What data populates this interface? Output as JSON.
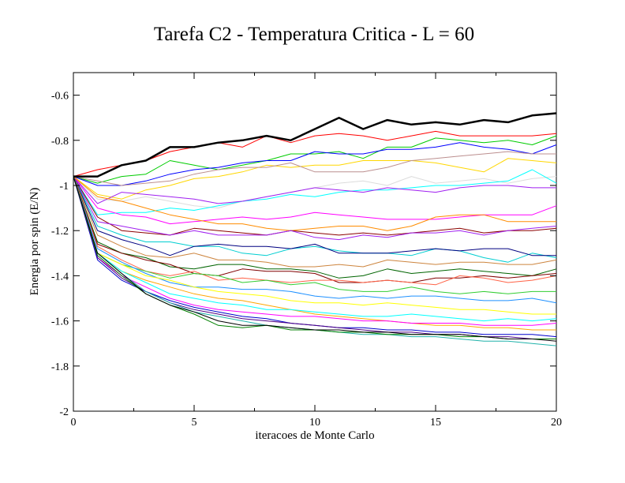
{
  "chart_data": {
    "type": "line",
    "title": "Tarefa C2 - Temperatura Critica - L = 60",
    "xlabel": "iteracoes de Monte Carlo",
    "ylabel": "Energia por spin (E/N)",
    "xlim": [
      0,
      20
    ],
    "ylim": [
      -2,
      -0.5
    ],
    "xticks": [
      0,
      5,
      10,
      15,
      20
    ],
    "yticks": [
      -2,
      -1.8,
      -1.6,
      -1.4,
      -1.2,
      -1,
      -0.8,
      -0.6
    ],
    "xtick_labels": [
      "0",
      "5",
      "10",
      "15",
      "20"
    ],
    "ytick_labels": [
      "-2",
      "-1.8",
      "-1.6",
      "-1.4",
      "-1.2",
      "-1",
      "-0.8",
      "-0.6"
    ],
    "grid": false,
    "legend": "none",
    "x": [
      0,
      1,
      2,
      3,
      4,
      5,
      6,
      7,
      8,
      9,
      10,
      11,
      12,
      13,
      14,
      15,
      16,
      17,
      18,
      19,
      20
    ],
    "series": [
      {
        "color": "#000000",
        "width": 2.5,
        "values": [
          -0.96,
          -0.96,
          -0.91,
          -0.89,
          -0.83,
          -0.83,
          -0.81,
          -0.8,
          -0.78,
          -0.8,
          -0.75,
          -0.7,
          -0.75,
          -0.71,
          -0.73,
          -0.72,
          -0.73,
          -0.71,
          -0.72,
          -0.69,
          -0.68
        ]
      },
      {
        "color": "#ff0000",
        "width": 1,
        "values": [
          -0.96,
          -0.93,
          -0.91,
          -0.89,
          -0.85,
          -0.83,
          -0.81,
          -0.83,
          -0.78,
          -0.81,
          -0.78,
          -0.77,
          -0.78,
          -0.8,
          -0.78,
          -0.76,
          -0.78,
          -0.78,
          -0.78,
          -0.78,
          -0.77
        ]
      },
      {
        "color": "#00cc00",
        "width": 1,
        "values": [
          -0.96,
          -0.99,
          -0.96,
          -0.95,
          -0.89,
          -0.91,
          -0.93,
          -0.91,
          -0.89,
          -0.86,
          -0.86,
          -0.85,
          -0.88,
          -0.83,
          -0.83,
          -0.79,
          -0.8,
          -0.81,
          -0.8,
          -0.82,
          -0.78
        ]
      },
      {
        "color": "#0000ff",
        "width": 1,
        "values": [
          -0.96,
          -1.0,
          -1.0,
          -0.98,
          -0.95,
          -0.93,
          -0.92,
          -0.9,
          -0.89,
          -0.89,
          -0.85,
          -0.86,
          -0.86,
          -0.84,
          -0.84,
          -0.83,
          -0.81,
          -0.83,
          -0.84,
          -0.86,
          -0.82
        ]
      },
      {
        "color": "#ffd700",
        "width": 1,
        "values": [
          -0.96,
          -1.04,
          -1.06,
          -1.02,
          -1.0,
          -0.97,
          -0.96,
          -0.94,
          -0.91,
          -0.92,
          -0.91,
          -0.91,
          -0.89,
          -0.89,
          -0.89,
          -0.9,
          -0.92,
          -0.94,
          -0.88,
          -0.89,
          -0.9
        ]
      },
      {
        "color": "#bc8f8f",
        "width": 1,
        "values": [
          -0.96,
          -0.98,
          -1.0,
          -0.99,
          -0.98,
          -0.95,
          -0.93,
          -0.92,
          -0.92,
          -0.9,
          -0.94,
          -0.94,
          -0.94,
          -0.92,
          -0.89,
          -0.88,
          -0.87,
          -0.86,
          -0.85,
          -0.86,
          -0.86
        ]
      },
      {
        "color": "#dcdcdc",
        "width": 1,
        "values": [
          -0.96,
          -1.06,
          -1.07,
          -1.05,
          -1.07,
          -1.09,
          -1.1,
          -1.07,
          -1.05,
          -1.03,
          -1.01,
          -0.99,
          -0.98,
          -1.0,
          -0.96,
          -0.99,
          -0.98,
          -0.97,
          -0.99,
          -0.97,
          -0.96
        ]
      },
      {
        "color": "#00ffff",
        "width": 1,
        "values": [
          -0.96,
          -1.13,
          -1.12,
          -1.12,
          -1.1,
          -1.11,
          -1.09,
          -1.07,
          -1.06,
          -1.04,
          -1.05,
          -1.03,
          -1.02,
          -1.02,
          -1.01,
          -1.0,
          -1.0,
          -0.99,
          -0.98,
          -0.93,
          -0.99
        ]
      },
      {
        "color": "#a020f0",
        "width": 1,
        "values": [
          -0.96,
          -1.08,
          -1.03,
          -1.04,
          -1.05,
          -1.06,
          -1.08,
          -1.07,
          -1.05,
          -1.03,
          -1.01,
          -1.02,
          -1.03,
          -1.01,
          -1.02,
          -1.03,
          -1.01,
          -1.0,
          -1.0,
          -1.01,
          -1.01
        ]
      },
      {
        "color": "#ff00ff",
        "width": 1,
        "values": [
          -0.96,
          -1.1,
          -1.13,
          -1.14,
          -1.17,
          -1.16,
          -1.15,
          -1.14,
          -1.15,
          -1.14,
          -1.12,
          -1.13,
          -1.14,
          -1.15,
          -1.15,
          -1.15,
          -1.14,
          -1.13,
          -1.13,
          -1.13,
          -1.09
        ]
      },
      {
        "color": "#ff8c00",
        "width": 1,
        "values": [
          -0.96,
          -1.05,
          -1.07,
          -1.1,
          -1.13,
          -1.15,
          -1.17,
          -1.17,
          -1.19,
          -1.2,
          -1.19,
          -1.18,
          -1.18,
          -1.2,
          -1.18,
          -1.14,
          -1.13,
          -1.13,
          -1.16,
          -1.16,
          -1.16
        ]
      },
      {
        "color": "#8b0000",
        "width": 1,
        "values": [
          -0.96,
          -1.14,
          -1.2,
          -1.21,
          -1.22,
          -1.19,
          -1.2,
          -1.21,
          -1.22,
          -1.2,
          -1.21,
          -1.22,
          -1.21,
          -1.22,
          -1.21,
          -1.2,
          -1.19,
          -1.21,
          -1.2,
          -1.2,
          -1.19
        ]
      },
      {
        "color": "#a020f0",
        "width": 1,
        "values": [
          -0.96,
          -1.16,
          -1.18,
          -1.2,
          -1.22,
          -1.2,
          -1.22,
          -1.22,
          -1.22,
          -1.2,
          -1.23,
          -1.24,
          -1.22,
          -1.23,
          -1.21,
          -1.21,
          -1.2,
          -1.22,
          -1.2,
          -1.19,
          -1.18
        ]
      },
      {
        "color": "#00ced1",
        "width": 1,
        "values": [
          -0.96,
          -1.18,
          -1.22,
          -1.25,
          -1.25,
          -1.27,
          -1.27,
          -1.3,
          -1.31,
          -1.28,
          -1.27,
          -1.29,
          -1.3,
          -1.3,
          -1.31,
          -1.28,
          -1.29,
          -1.32,
          -1.34,
          -1.3,
          -1.32
        ]
      },
      {
        "color": "#000080",
        "width": 1,
        "values": [
          -0.96,
          -1.2,
          -1.24,
          -1.27,
          -1.31,
          -1.27,
          -1.26,
          -1.27,
          -1.27,
          -1.28,
          -1.26,
          -1.3,
          -1.3,
          -1.3,
          -1.29,
          -1.28,
          -1.29,
          -1.28,
          -1.28,
          -1.31,
          -1.31
        ]
      },
      {
        "color": "#cd853f",
        "width": 1,
        "values": [
          -0.96,
          -1.22,
          -1.27,
          -1.31,
          -1.32,
          -1.3,
          -1.33,
          -1.33,
          -1.34,
          -1.36,
          -1.36,
          -1.35,
          -1.36,
          -1.33,
          -1.34,
          -1.35,
          -1.34,
          -1.34,
          -1.35,
          -1.35,
          -1.33
        ]
      },
      {
        "color": "#006400",
        "width": 1,
        "values": [
          -0.96,
          -1.25,
          -1.3,
          -1.32,
          -1.36,
          -1.37,
          -1.35,
          -1.35,
          -1.37,
          -1.37,
          -1.38,
          -1.41,
          -1.4,
          -1.37,
          -1.39,
          -1.38,
          -1.37,
          -1.38,
          -1.39,
          -1.4,
          -1.37
        ]
      },
      {
        "color": "#800000",
        "width": 1,
        "values": [
          -0.96,
          -1.26,
          -1.3,
          -1.33,
          -1.35,
          -1.39,
          -1.4,
          -1.37,
          -1.38,
          -1.38,
          -1.39,
          -1.43,
          -1.43,
          -1.42,
          -1.43,
          -1.41,
          -1.41,
          -1.4,
          -1.41,
          -1.4,
          -1.39
        ]
      },
      {
        "color": "#ff6347",
        "width": 1,
        "values": [
          -0.96,
          -1.27,
          -1.33,
          -1.38,
          -1.4,
          -1.38,
          -1.42,
          -1.41,
          -1.42,
          -1.43,
          -1.42,
          -1.42,
          -1.43,
          -1.42,
          -1.43,
          -1.44,
          -1.4,
          -1.41,
          -1.43,
          -1.42,
          -1.4
        ]
      },
      {
        "color": "#32cd32",
        "width": 1,
        "values": [
          -0.96,
          -1.3,
          -1.35,
          -1.38,
          -1.41,
          -1.39,
          -1.4,
          -1.43,
          -1.42,
          -1.44,
          -1.43,
          -1.46,
          -1.47,
          -1.47,
          -1.45,
          -1.47,
          -1.48,
          -1.47,
          -1.48,
          -1.47,
          -1.47
        ]
      },
      {
        "color": "#1e90ff",
        "width": 1,
        "values": [
          -0.96,
          -1.28,
          -1.34,
          -1.39,
          -1.43,
          -1.45,
          -1.45,
          -1.46,
          -1.46,
          -1.47,
          -1.49,
          -1.5,
          -1.49,
          -1.5,
          -1.49,
          -1.49,
          -1.5,
          -1.51,
          -1.51,
          -1.5,
          -1.52
        ]
      },
      {
        "color": "#ffff00",
        "width": 1,
        "values": [
          -0.96,
          -1.3,
          -1.35,
          -1.4,
          -1.42,
          -1.45,
          -1.47,
          -1.48,
          -1.49,
          -1.51,
          -1.52,
          -1.52,
          -1.53,
          -1.52,
          -1.53,
          -1.54,
          -1.55,
          -1.55,
          -1.56,
          -1.57,
          -1.57
        ]
      },
      {
        "color": "#ffa500",
        "width": 1,
        "values": [
          -0.96,
          -1.3,
          -1.38,
          -1.42,
          -1.45,
          -1.48,
          -1.5,
          -1.51,
          -1.53,
          -1.55,
          -1.57,
          -1.58,
          -1.59,
          -1.6,
          -1.61,
          -1.62,
          -1.62,
          -1.63,
          -1.63,
          -1.64,
          -1.64
        ]
      },
      {
        "color": "#00ffff",
        "width": 1,
        "values": [
          -0.96,
          -1.3,
          -1.38,
          -1.43,
          -1.48,
          -1.5,
          -1.52,
          -1.53,
          -1.55,
          -1.55,
          -1.56,
          -1.57,
          -1.58,
          -1.58,
          -1.57,
          -1.58,
          -1.59,
          -1.6,
          -1.59,
          -1.6,
          -1.59
        ]
      },
      {
        "color": "#ff00ff",
        "width": 1,
        "values": [
          -0.96,
          -1.32,
          -1.4,
          -1.45,
          -1.5,
          -1.53,
          -1.55,
          -1.56,
          -1.57,
          -1.58,
          -1.58,
          -1.59,
          -1.6,
          -1.6,
          -1.61,
          -1.61,
          -1.61,
          -1.62,
          -1.62,
          -1.62,
          -1.61
        ]
      },
      {
        "color": "#0000cd",
        "width": 1,
        "values": [
          -0.96,
          -1.33,
          -1.42,
          -1.47,
          -1.51,
          -1.54,
          -1.56,
          -1.58,
          -1.59,
          -1.61,
          -1.62,
          -1.63,
          -1.63,
          -1.64,
          -1.64,
          -1.65,
          -1.65,
          -1.66,
          -1.66,
          -1.66,
          -1.67
        ]
      },
      {
        "color": "#4b0082",
        "width": 1,
        "values": [
          -0.96,
          -1.32,
          -1.41,
          -1.47,
          -1.52,
          -1.55,
          -1.57,
          -1.59,
          -1.6,
          -1.61,
          -1.62,
          -1.63,
          -1.64,
          -1.65,
          -1.65,
          -1.66,
          -1.66,
          -1.67,
          -1.67,
          -1.68,
          -1.68
        ]
      },
      {
        "color": "#20b2aa",
        "width": 1,
        "values": [
          -0.96,
          -1.3,
          -1.39,
          -1.47,
          -1.52,
          -1.56,
          -1.58,
          -1.6,
          -1.62,
          -1.63,
          -1.64,
          -1.65,
          -1.66,
          -1.66,
          -1.67,
          -1.67,
          -1.68,
          -1.69,
          -1.69,
          -1.7,
          -1.71
        ]
      },
      {
        "color": "#008000",
        "width": 1,
        "values": [
          -0.96,
          -1.31,
          -1.4,
          -1.48,
          -1.53,
          -1.57,
          -1.62,
          -1.63,
          -1.62,
          -1.64,
          -1.64,
          -1.65,
          -1.65,
          -1.66,
          -1.66,
          -1.66,
          -1.67,
          -1.67,
          -1.68,
          -1.68,
          -1.68
        ]
      },
      {
        "color": "#000000",
        "width": 1,
        "values": [
          -0.96,
          -1.3,
          -1.39,
          -1.48,
          -1.53,
          -1.56,
          -1.6,
          -1.62,
          -1.62,
          -1.63,
          -1.64,
          -1.64,
          -1.65,
          -1.65,
          -1.66,
          -1.66,
          -1.66,
          -1.67,
          -1.68,
          -1.68,
          -1.69
        ]
      }
    ]
  }
}
